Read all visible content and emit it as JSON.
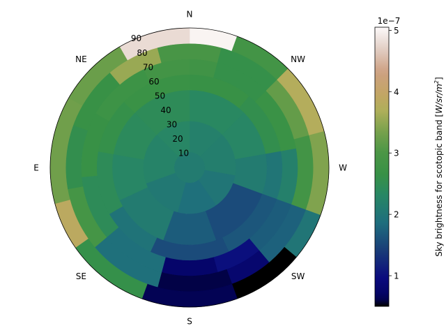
{
  "chart_data": {
    "type": "heatmap",
    "projection": "polar",
    "title": "",
    "direction_labels": [
      {
        "label": "N",
        "azimuth": 0
      },
      {
        "label": "NW",
        "azimuth": 45
      },
      {
        "label": "W",
        "azimuth": 90
      },
      {
        "label": "SW",
        "azimuth": 135
      },
      {
        "label": "S",
        "azimuth": 180
      },
      {
        "label": "SE",
        "azimuth": 225
      },
      {
        "label": "E",
        "azimuth": 270
      },
      {
        "label": "NE",
        "azimuth": 315
      }
    ],
    "radial_ticks": [
      10,
      20,
      30,
      40,
      50,
      60,
      70,
      80,
      90
    ],
    "radial_range": [
      0,
      90
    ],
    "radial_edges": [
      0,
      10,
      20,
      30,
      40,
      50,
      60,
      70,
      80,
      90
    ],
    "rings": [
      {
        "r0": 0,
        "r1": 10,
        "sectors": [
          {
            "from": 0,
            "to": 360,
            "value": 2.1
          }
        ]
      },
      {
        "r0": 10,
        "r1": 30,
        "sectors": [
          {
            "from": 0,
            "to": 45,
            "value": 2.2
          },
          {
            "from": 45,
            "to": 100,
            "value": 2.15
          },
          {
            "from": 100,
            "to": 145,
            "value": 2.0
          },
          {
            "from": 145,
            "to": 195,
            "value": 1.9
          },
          {
            "from": 195,
            "to": 250,
            "value": 2.05
          },
          {
            "from": 250,
            "to": 315,
            "value": 2.25
          },
          {
            "from": 315,
            "to": 360,
            "value": 2.3
          }
        ]
      },
      {
        "r0": 30,
        "r1": 50,
        "sectors": [
          {
            "from": 0,
            "to": 45,
            "value": 2.35
          },
          {
            "from": 45,
            "to": 80,
            "value": 2.3
          },
          {
            "from": 80,
            "to": 110,
            "value": 2.1
          },
          {
            "from": 110,
            "to": 160,
            "value": 1.55
          },
          {
            "from": 160,
            "to": 200,
            "value": 1.7
          },
          {
            "from": 200,
            "to": 245,
            "value": 2.1
          },
          {
            "from": 245,
            "to": 280,
            "value": 2.3
          },
          {
            "from": 280,
            "to": 315,
            "value": 2.4
          },
          {
            "from": 315,
            "to": 360,
            "value": 2.45
          }
        ]
      },
      {
        "r0": 50,
        "r1": 60,
        "sectors": [
          {
            "from": 0,
            "to": 40,
            "value": 2.65
          },
          {
            "from": 40,
            "to": 80,
            "value": 2.55
          },
          {
            "from": 80,
            "to": 110,
            "value": 2.0
          },
          {
            "from": 110,
            "to": 155,
            "value": 1.65
          },
          {
            "from": 155,
            "to": 205,
            "value": 1.55
          },
          {
            "from": 205,
            "to": 240,
            "value": 1.95
          },
          {
            "from": 240,
            "to": 280,
            "value": 2.45
          },
          {
            "from": 280,
            "to": 315,
            "value": 2.6
          },
          {
            "from": 315,
            "to": 360,
            "value": 2.7
          }
        ]
      },
      {
        "r0": 60,
        "r1": 70,
        "sectors": [
          {
            "from": 0,
            "to": 15,
            "value": 2.8
          },
          {
            "from": 15,
            "to": 45,
            "value": 2.6
          },
          {
            "from": 45,
            "to": 80,
            "value": 2.7
          },
          {
            "from": 80,
            "to": 110,
            "value": 2.2
          },
          {
            "from": 110,
            "to": 140,
            "value": 1.7
          },
          {
            "from": 140,
            "to": 165,
            "value": 1.0
          },
          {
            "from": 165,
            "to": 195,
            "value": 0.75
          },
          {
            "from": 195,
            "to": 230,
            "value": 1.9
          },
          {
            "from": 230,
            "to": 265,
            "value": 2.45
          },
          {
            "from": 265,
            "to": 300,
            "value": 2.65
          },
          {
            "from": 300,
            "to": 335,
            "value": 2.75
          },
          {
            "from": 335,
            "to": 360,
            "value": 2.85
          }
        ]
      },
      {
        "r0": 70,
        "r1": 80,
        "sectors": [
          {
            "from": 0,
            "to": 15,
            "value": 2.95
          },
          {
            "from": 15,
            "to": 45,
            "value": 2.6
          },
          {
            "from": 45,
            "to": 75,
            "value": 3.2
          },
          {
            "from": 75,
            "to": 110,
            "value": 2.85
          },
          {
            "from": 110,
            "to": 140,
            "value": 1.75
          },
          {
            "from": 140,
            "to": 160,
            "value": 0.8
          },
          {
            "from": 160,
            "to": 195,
            "value": 0.6
          },
          {
            "from": 195,
            "to": 230,
            "value": 1.9
          },
          {
            "from": 230,
            "to": 260,
            "value": 2.9
          },
          {
            "from": 260,
            "to": 290,
            "value": 2.55
          },
          {
            "from": 290,
            "to": 320,
            "value": 2.65
          },
          {
            "from": 320,
            "to": 345,
            "value": 3.55
          },
          {
            "from": 345,
            "to": 360,
            "value": 2.95
          }
        ]
      },
      {
        "r0": 80,
        "r1": 90,
        "sectors": [
          {
            "from": 0,
            "to": 20,
            "value": 5.0
          },
          {
            "from": 20,
            "to": 45,
            "value": 2.85
          },
          {
            "from": 45,
            "to": 75,
            "value": 3.75
          },
          {
            "from": 75,
            "to": 110,
            "value": 3.4
          },
          {
            "from": 110,
            "to": 130,
            "value": 2.0
          },
          {
            "from": 130,
            "to": 160,
            "value": 0.5
          },
          {
            "from": 160,
            "to": 200,
            "value": 0.62
          },
          {
            "from": 200,
            "to": 235,
            "value": 2.6
          },
          {
            "from": 235,
            "to": 255,
            "value": 3.85
          },
          {
            "from": 255,
            "to": 300,
            "value": 3.3
          },
          {
            "from": 300,
            "to": 330,
            "value": 3.25
          },
          {
            "from": 330,
            "to": 360,
            "value": 4.8
          }
        ]
      }
    ],
    "colorbar": {
      "label": "Sky brightness for scotopic band [W/sr/m²]",
      "label_main": "Sky brightness for scotopic band [",
      "label_unit_base": "W/sr/m",
      "label_unit_sup": "2",
      "label_close": "]",
      "exponent_label": "1e−7",
      "min": 0.5,
      "max": 5.05,
      "ticks": [
        1,
        2,
        3,
        4,
        5
      ],
      "colormap": "gist_earth"
    }
  }
}
